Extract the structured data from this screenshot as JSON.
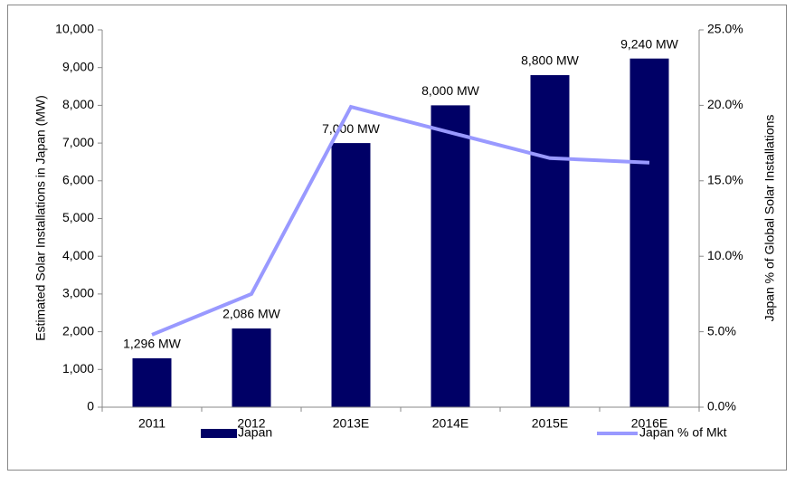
{
  "chart_data": {
    "type": "bar",
    "categories": [
      "2011",
      "2012",
      "2013E",
      "2014E",
      "2015E",
      "2016E"
    ],
    "series": [
      {
        "name": "Japan",
        "type": "bar",
        "color": "#000066",
        "values": [
          1296,
          2086,
          7000,
          8000,
          8800,
          9240
        ],
        "value_labels": [
          "1,296 MW",
          "2,086 MW",
          "7,000 MW",
          "8,000 MW",
          "8,800 MW",
          "9,240 MW"
        ]
      },
      {
        "name": "Japan % of Mkt",
        "type": "line",
        "axis": "y2",
        "color": "#9999ff",
        "values": [
          4.8,
          7.5,
          19.9,
          18.2,
          16.5,
          16.2
        ]
      }
    ],
    "ylabel": "Estimated  Solar Installations in Japan (MW)",
    "y2label": "Japan % of Global Solar Installations",
    "ylim": [
      0,
      10000
    ],
    "yticks": [
      0,
      {
        "value": 1000,
        "label": "1,000"
      },
      {
        "value": 2000,
        "label": "2,000"
      },
      {
        "value": 3000,
        "label": "3,000"
      },
      {
        "value": 4000,
        "label": "4,000"
      },
      {
        "value": 5000,
        "label": "5,000"
      },
      {
        "value": 6000,
        "label": "6,000"
      },
      {
        "value": 7000,
        "label": "7,000"
      },
      {
        "value": 8000,
        "label": "8,000"
      },
      {
        "value": 9000,
        "label": "9,000"
      },
      {
        "value": 10000,
        "label": "10,000"
      }
    ],
    "y2lim": [
      0,
      25
    ],
    "y2ticks": [
      {
        "value": 0,
        "label": "0.0%"
      },
      {
        "value": 5,
        "label": "5.0%"
      },
      {
        "value": 10,
        "label": "10.0%"
      },
      {
        "value": 15,
        "label": "15.0%"
      },
      {
        "value": 20,
        "label": "20.0%"
      },
      {
        "value": 25,
        "label": "25.0%"
      }
    ],
    "legend": "bottom",
    "grid": false
  }
}
